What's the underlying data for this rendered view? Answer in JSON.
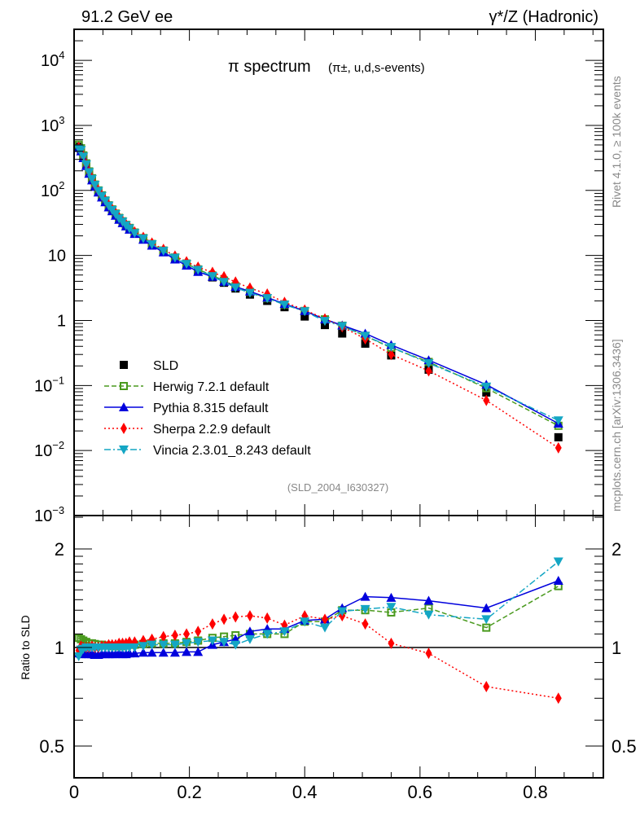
{
  "header": {
    "left": "91.2 GeV ee",
    "right": "γ*/Z (Hadronic)"
  },
  "side_labels": {
    "rivet": "Rivet 4.1.0, ≥ 100k events",
    "mcplots": "mcplots.cern.ch [arXiv:1306.3436]"
  },
  "chart_data": [
    {
      "type": "scatter",
      "panel": "main",
      "title": "π spectrum",
      "subtitle": "(π±, u,d,s-events)",
      "analysis_id": "(SLD_2004_I630327)",
      "xlabel": "",
      "ylabel": "",
      "xlim": [
        0,
        0.918
      ],
      "ylim": [
        0.001,
        30000
      ],
      "yscale": "log",
      "ytick_labels": [
        "10^4",
        "10^3",
        "10^2",
        "10",
        "1",
        "10^-1",
        "10^-2",
        "10^-3"
      ],
      "ytick_values": [
        10000,
        1000,
        100,
        10,
        1,
        0.1,
        0.01,
        0.001
      ],
      "legend_position": "bottom-left",
      "x": [
        0.008,
        0.012,
        0.016,
        0.021,
        0.026,
        0.031,
        0.036,
        0.042,
        0.048,
        0.054,
        0.06,
        0.066,
        0.072,
        0.078,
        0.084,
        0.09,
        0.096,
        0.105,
        0.12,
        0.135,
        0.155,
        0.175,
        0.195,
        0.215,
        0.24,
        0.26,
        0.28,
        0.305,
        0.335,
        0.365,
        0.4,
        0.435,
        0.465,
        0.505,
        0.55,
        0.615,
        0.715,
        0.84
      ],
      "series": [
        {
          "name": "SLD",
          "color": "#000000",
          "marker": "square",
          "line": "none",
          "values": [
            470,
            420,
            330,
            250,
            190,
            150,
            120,
            98,
            82,
            69,
            58,
            50,
            43,
            37,
            33,
            29,
            26,
            22,
            18,
            14.5,
            11.5,
            9,
            7.2,
            5.8,
            4.6,
            3.8,
            3.1,
            2.5,
            2.0,
            1.6,
            1.15,
            0.85,
            0.63,
            0.44,
            0.29,
            0.175,
            0.078,
            0.016
          ]
        },
        {
          "name": "Herwig 7.2.1 default",
          "color": "#4a9a1e",
          "marker": "open-square",
          "line": "dashed",
          "values": [
            505,
            445,
            345,
            260,
            196,
            154,
            123,
            100,
            84,
            70,
            59,
            51,
            44,
            37.8,
            33.5,
            29.5,
            26.5,
            22.5,
            18.5,
            15,
            11.9,
            9.3,
            7.5,
            6.1,
            4.9,
            4.1,
            3.35,
            2.75,
            2.2,
            1.76,
            1.4,
            1.04,
            0.83,
            0.58,
            0.38,
            0.23,
            0.091,
            0.024
          ]
        },
        {
          "name": "Pythia 8.315 default",
          "color": "#0000dd",
          "marker": "triangle-up",
          "line": "solid",
          "values": [
            450,
            400,
            315,
            238,
            181,
            143,
            114,
            93,
            78,
            66,
            55,
            48,
            41,
            35.5,
            31.5,
            28,
            25,
            21.5,
            17.5,
            14.2,
            11.2,
            8.7,
            7.0,
            5.6,
            4.7,
            3.95,
            3.3,
            2.8,
            2.25,
            1.8,
            1.4,
            1.04,
            0.84,
            0.63,
            0.42,
            0.245,
            0.103,
            0.026
          ]
        },
        {
          "name": "Sherpa 2.2.9 default",
          "color": "#ff0000",
          "marker": "diamond",
          "line": "dotted",
          "values": [
            460,
            425,
            335,
            253,
            193,
            153,
            122,
            100,
            84,
            71,
            60,
            51.5,
            44.5,
            38.5,
            34,
            30,
            27,
            23,
            19,
            15.5,
            12.4,
            9.8,
            8.0,
            6.6,
            5.5,
            4.7,
            3.9,
            3.15,
            2.55,
            1.9,
            1.45,
            1.06,
            0.8,
            0.52,
            0.3,
            0.168,
            0.059,
            0.011
          ]
        },
        {
          "name": "Vincia 2.3.01_8.243 default",
          "color": "#14a6c4",
          "marker": "triangle-down",
          "line": "dash-dot",
          "values": [
            440,
            415,
            330,
            250,
            190,
            150,
            121,
            98,
            82,
            69,
            58,
            50,
            43,
            37,
            33,
            29,
            26,
            22,
            18.2,
            14.8,
            11.7,
            9.2,
            7.4,
            6.0,
            4.8,
            3.9,
            3.2,
            2.65,
            2.2,
            1.75,
            1.38,
            0.98,
            0.82,
            0.58,
            0.39,
            0.22,
            0.096,
            0.029
          ]
        }
      ]
    },
    {
      "type": "scatter",
      "panel": "ratio",
      "ylabel": "Ratio to SLD",
      "xlim": [
        0,
        0.918
      ],
      "ylim": [
        0.4,
        2.53
      ],
      "yscale": "log",
      "ytick_labels": [
        "2",
        "1",
        "0.5"
      ],
      "ytick_values": [
        2,
        1,
        0.5
      ],
      "xtick_labels": [
        "0",
        "0.2",
        "0.4",
        "0.6",
        "0.8"
      ],
      "xtick_values": [
        0,
        0.2,
        0.4,
        0.6,
        0.8
      ],
      "reference_line": 1,
      "x": [
        0.008,
        0.012,
        0.016,
        0.021,
        0.026,
        0.031,
        0.036,
        0.042,
        0.048,
        0.054,
        0.06,
        0.066,
        0.072,
        0.078,
        0.084,
        0.09,
        0.096,
        0.105,
        0.12,
        0.135,
        0.155,
        0.175,
        0.195,
        0.215,
        0.24,
        0.26,
        0.28,
        0.305,
        0.335,
        0.365,
        0.4,
        0.435,
        0.465,
        0.505,
        0.55,
        0.615,
        0.715,
        0.84
      ],
      "series": [
        {
          "name": "Herwig 7.2.1 default",
          "color": "#4a9a1e",
          "marker": "open-square",
          "line": "dashed",
          "values": [
            1.07,
            1.06,
            1.05,
            1.04,
            1.03,
            1.03,
            1.025,
            1.02,
            1.02,
            1.015,
            1.015,
            1.01,
            1.01,
            1.01,
            1.01,
            1.015,
            1.02,
            1.02,
            1.025,
            1.03,
            1.03,
            1.03,
            1.04,
            1.05,
            1.07,
            1.08,
            1.09,
            1.1,
            1.1,
            1.1,
            1.2,
            1.2,
            1.3,
            1.3,
            1.28,
            1.32,
            1.15,
            1.54
          ]
        },
        {
          "name": "Pythia 8.315 default",
          "color": "#0000dd",
          "marker": "triangle-up",
          "line": "solid",
          "values": [
            0.96,
            0.955,
            0.96,
            0.955,
            0.955,
            0.955,
            0.95,
            0.95,
            0.955,
            0.955,
            0.955,
            0.955,
            0.955,
            0.96,
            0.955,
            0.955,
            0.96,
            0.96,
            0.965,
            0.965,
            0.965,
            0.965,
            0.97,
            0.97,
            1.02,
            1.04,
            1.06,
            1.12,
            1.14,
            1.14,
            1.21,
            1.22,
            1.32,
            1.43,
            1.42,
            1.39,
            1.32,
            1.6
          ]
        },
        {
          "name": "Sherpa 2.2.9 default",
          "color": "#ff0000",
          "marker": "diamond",
          "line": "dotted",
          "values": [
            0.98,
            1.01,
            1.0,
            1.0,
            1.0,
            1.01,
            1.0,
            1.0,
            1.01,
            1.01,
            1.02,
            1.02,
            1.02,
            1.03,
            1.03,
            1.03,
            1.04,
            1.04,
            1.05,
            1.06,
            1.08,
            1.09,
            1.1,
            1.12,
            1.18,
            1.22,
            1.24,
            1.25,
            1.23,
            1.17,
            1.25,
            1.22,
            1.25,
            1.18,
            1.03,
            0.96,
            0.76,
            0.7
          ]
        },
        {
          "name": "Vincia 2.3.01_8.243 default",
          "color": "#14a6c4",
          "marker": "triangle-down",
          "line": "dash-dot",
          "values": [
            0.94,
            0.985,
            0.99,
            1.0,
            1.0,
            1.0,
            1.0,
            1.0,
            1.0,
            1.0,
            1.0,
            1.0,
            1.0,
            1.0,
            1.0,
            1.0,
            1.0,
            1.0,
            1.01,
            1.02,
            1.02,
            1.02,
            1.03,
            1.04,
            1.05,
            1.04,
            1.02,
            1.06,
            1.1,
            1.12,
            1.2,
            1.15,
            1.29,
            1.31,
            1.33,
            1.26,
            1.22,
            1.83
          ]
        }
      ]
    }
  ]
}
